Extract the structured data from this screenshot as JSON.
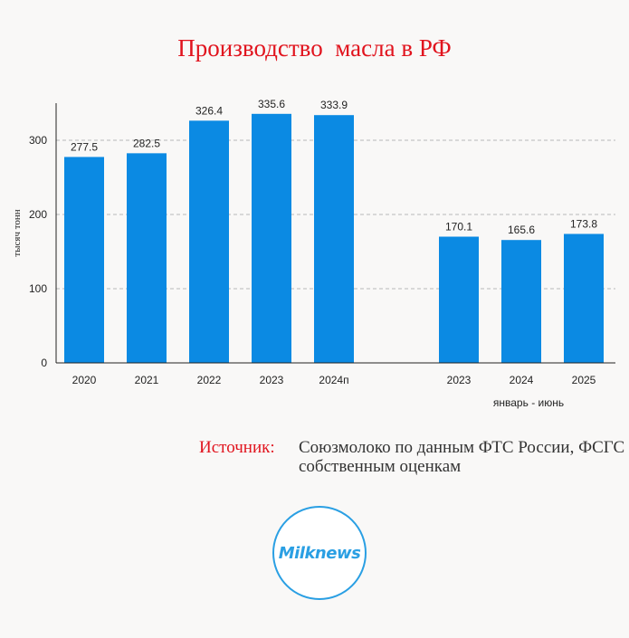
{
  "title": "Производство  масла в РФ",
  "chart_data": {
    "type": "bar",
    "categories": [
      "2020",
      "2021",
      "2022",
      "2023",
      "2024п",
      "2023",
      "2024",
      "2025"
    ],
    "values": [
      277.5,
      282.5,
      326.4,
      335.6,
      333.9,
      170.1,
      165.6,
      173.8
    ],
    "value_labels": [
      "277.5",
      "282.5",
      "326.4",
      "335.6",
      "333.9",
      "170.1",
      "165.6",
      "173.8"
    ],
    "ylabel": "тысяч тонн",
    "yticks": [
      "0",
      "100",
      "200",
      "300"
    ],
    "ytick_values": [
      0,
      100,
      200,
      300
    ],
    "ylim": [
      0,
      350
    ],
    "group_label": "январь - июнь",
    "grid": true,
    "bar_color": "#0b8ae3"
  },
  "source": {
    "label": "Источник:",
    "text": "Союзмолоко по данным ФТС России, ФСГС и собственным оценкам"
  },
  "logo": {
    "text": "Milknews",
    "color": "#2a9fe3"
  }
}
